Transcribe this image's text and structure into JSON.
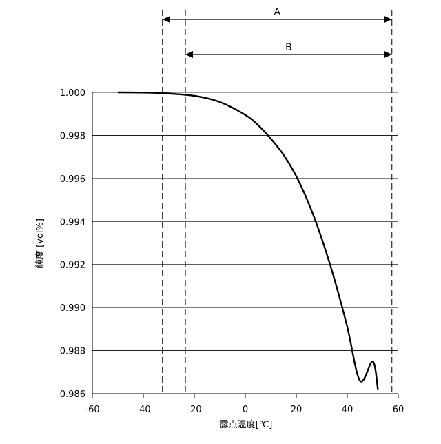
{
  "chart_data": {
    "type": "line",
    "xlabel": "露点温度[℃]",
    "ylabel": "純度 [vol%]",
    "xlim": [
      -60,
      60
    ],
    "ylim": [
      0.986,
      1.0
    ],
    "x_ticks": [
      "-60",
      "-40",
      "-20",
      "0",
      "20",
      "40",
      "60"
    ],
    "y_ticks": [
      "0.986",
      "0.988",
      "0.990",
      "0.992",
      "0.994",
      "0.996",
      "0.998",
      "1.000"
    ],
    "grid": "horizontal",
    "series": [
      {
        "x": [
          -50,
          -40,
          -32,
          -20,
          -10,
          0,
          5,
          10,
          15,
          20,
          25,
          30,
          35,
          40,
          45,
          50,
          52
        ],
        "y": [
          1.0,
          0.99999,
          0.99996,
          0.99984,
          0.99955,
          0.99895,
          0.99848,
          0.99785,
          0.9971,
          0.9961,
          0.9948,
          0.9932,
          0.9913,
          0.9891,
          0.9866,
          0.9875,
          0.9862
        ]
      }
    ],
    "annotations": [
      {
        "label": "A",
        "x_from": -32.5,
        "x_to": 57.5
      },
      {
        "label": "B",
        "x_from": -23.5,
        "x_to": 57.5
      }
    ]
  }
}
